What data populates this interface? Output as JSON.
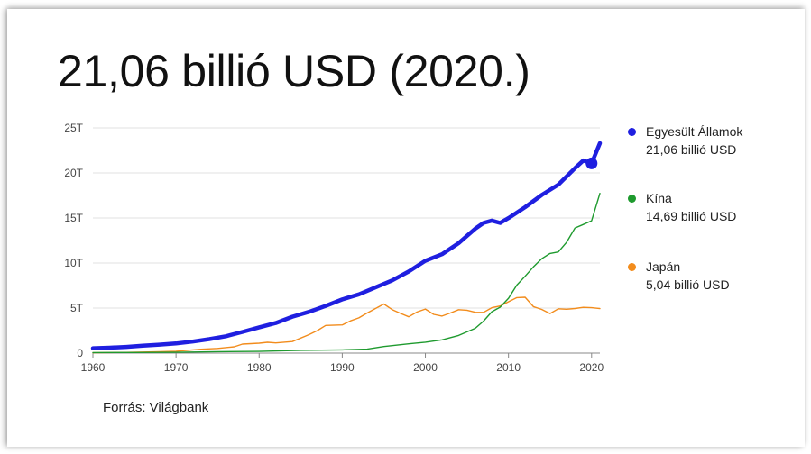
{
  "headline": "21,06 billió USD (2020.)",
  "source": "Forrás: Világbank",
  "colors": {
    "us": "#1f1fe0",
    "china": "#1e9a2e",
    "japan": "#f28c1c",
    "axis": "#888888",
    "grid": "#e2e2e2"
  },
  "chart_data": {
    "type": "line",
    "title": "",
    "xlabel": "",
    "ylabel": "",
    "xlim": [
      1960,
      2021
    ],
    "ylim": [
      0,
      25
    ],
    "grid": true,
    "legend_position": "right",
    "x_ticks": [
      1960,
      1970,
      1980,
      1990,
      2000,
      2010,
      2020
    ],
    "y_ticks": [
      0,
      5,
      10,
      15,
      20,
      25
    ],
    "y_tick_labels": [
      "0",
      "5T",
      "10T",
      "15T",
      "20T",
      "25T"
    ],
    "highlight": {
      "series": "Egyesült Államok",
      "x": 2020,
      "y": 21.06
    },
    "series": [
      {
        "name": "Egyesült Államok",
        "label_value": "21,06 billió USD",
        "color": "#1f1fe0",
        "points": [
          [
            1960,
            0.54
          ],
          [
            1962,
            0.6
          ],
          [
            1964,
            0.69
          ],
          [
            1966,
            0.82
          ],
          [
            1968,
            0.94
          ],
          [
            1970,
            1.07
          ],
          [
            1972,
            1.28
          ],
          [
            1974,
            1.55
          ],
          [
            1976,
            1.87
          ],
          [
            1978,
            2.35
          ],
          [
            1980,
            2.86
          ],
          [
            1982,
            3.34
          ],
          [
            1984,
            4.04
          ],
          [
            1986,
            4.58
          ],
          [
            1988,
            5.24
          ],
          [
            1990,
            5.96
          ],
          [
            1992,
            6.52
          ],
          [
            1994,
            7.29
          ],
          [
            1996,
            8.07
          ],
          [
            1998,
            9.06
          ],
          [
            2000,
            10.25
          ],
          [
            2002,
            10.98
          ],
          [
            2004,
            12.21
          ],
          [
            2006,
            13.81
          ],
          [
            2007,
            14.45
          ],
          [
            2008,
            14.71
          ],
          [
            2009,
            14.45
          ],
          [
            2010,
            14.99
          ],
          [
            2012,
            16.2
          ],
          [
            2014,
            17.55
          ],
          [
            2016,
            18.7
          ],
          [
            2018,
            20.53
          ],
          [
            2019,
            21.38
          ],
          [
            2020,
            21.06
          ],
          [
            2021,
            23.3
          ]
        ]
      },
      {
        "name": "Kína",
        "label_value": "14,69 billió USD",
        "color": "#1e9a2e",
        "points": [
          [
            1960,
            0.06
          ],
          [
            1965,
            0.07
          ],
          [
            1970,
            0.09
          ],
          [
            1975,
            0.16
          ],
          [
            1980,
            0.19
          ],
          [
            1985,
            0.31
          ],
          [
            1990,
            0.36
          ],
          [
            1993,
            0.44
          ],
          [
            1995,
            0.73
          ],
          [
            1998,
            1.03
          ],
          [
            2000,
            1.21
          ],
          [
            2002,
            1.47
          ],
          [
            2004,
            1.96
          ],
          [
            2006,
            2.75
          ],
          [
            2007,
            3.55
          ],
          [
            2008,
            4.59
          ],
          [
            2009,
            5.1
          ],
          [
            2010,
            6.09
          ],
          [
            2011,
            7.55
          ],
          [
            2012,
            8.53
          ],
          [
            2013,
            9.57
          ],
          [
            2014,
            10.48
          ],
          [
            2015,
            11.06
          ],
          [
            2016,
            11.23
          ],
          [
            2017,
            12.31
          ],
          [
            2018,
            13.89
          ],
          [
            2019,
            14.28
          ],
          [
            2020,
            14.69
          ],
          [
            2021,
            17.73
          ]
        ]
      },
      {
        "name": "Japán",
        "label_value": "5,04 billió USD",
        "color": "#f28c1c",
        "points": [
          [
            1960,
            0.04
          ],
          [
            1964,
            0.08
          ],
          [
            1968,
            0.15
          ],
          [
            1970,
            0.21
          ],
          [
            1973,
            0.43
          ],
          [
            1975,
            0.52
          ],
          [
            1977,
            0.7
          ],
          [
            1978,
            1.0
          ],
          [
            1980,
            1.1
          ],
          [
            1981,
            1.2
          ],
          [
            1982,
            1.13
          ],
          [
            1984,
            1.28
          ],
          [
            1986,
            2.05
          ],
          [
            1987,
            2.5
          ],
          [
            1988,
            3.07
          ],
          [
            1990,
            3.13
          ],
          [
            1991,
            3.58
          ],
          [
            1992,
            3.91
          ],
          [
            1993,
            4.45
          ],
          [
            1995,
            5.45
          ],
          [
            1996,
            4.83
          ],
          [
            1997,
            4.41
          ],
          [
            1998,
            4.03
          ],
          [
            1999,
            4.56
          ],
          [
            2000,
            4.89
          ],
          [
            2001,
            4.3
          ],
          [
            2002,
            4.11
          ],
          [
            2003,
            4.45
          ],
          [
            2004,
            4.82
          ],
          [
            2005,
            4.76
          ],
          [
            2006,
            4.53
          ],
          [
            2007,
            4.52
          ],
          [
            2008,
            5.04
          ],
          [
            2009,
            5.23
          ],
          [
            2010,
            5.7
          ],
          [
            2011,
            6.16
          ],
          [
            2012,
            6.2
          ],
          [
            2013,
            5.16
          ],
          [
            2014,
            4.85
          ],
          [
            2015,
            4.39
          ],
          [
            2016,
            4.92
          ],
          [
            2017,
            4.87
          ],
          [
            2018,
            4.95
          ],
          [
            2019,
            5.08
          ],
          [
            2020,
            5.04
          ],
          [
            2021,
            4.94
          ]
        ]
      }
    ]
  }
}
